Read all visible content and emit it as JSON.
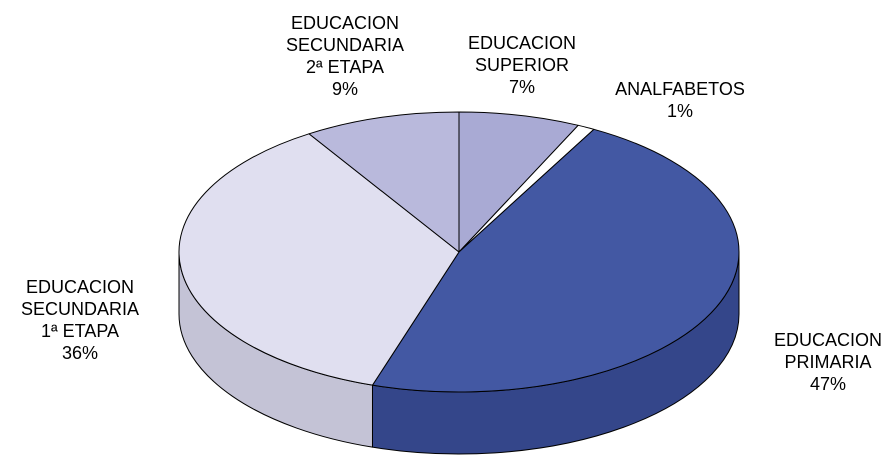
{
  "chart_data": {
    "type": "pie",
    "categories": [
      "EDUCACION\nSUPERIOR",
      "ANALFABETOS",
      "EDUCACION\nPRIMARIA",
      "EDUCACION\nSECUNDARIA\n1ª ETAPA",
      "EDUCACION\nSECUNDARIA\n2ª ETAPA"
    ],
    "values": [
      7,
      1,
      47,
      36,
      9
    ],
    "value_labels": [
      "7%",
      "1%",
      "47%",
      "36%",
      "9%"
    ],
    "colors": [
      "#a9aad4",
      "#ffffff",
      "#4358a3",
      "#e0dff0",
      "#b9b9dc"
    ],
    "side_colors": [
      "#8c8db5",
      "#d0d0d0",
      "#34468a",
      "#c4c3d6",
      "#9c9cbf"
    ]
  }
}
